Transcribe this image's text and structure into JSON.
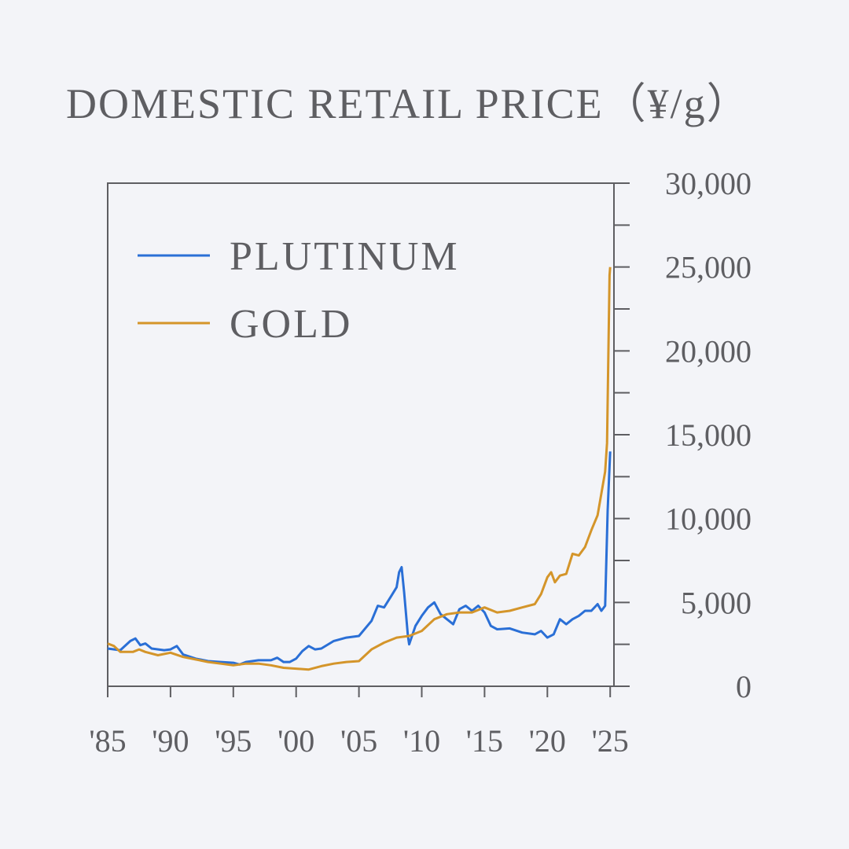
{
  "chart_data": {
    "type": "line",
    "title": "DOMESTIC RETAIL PRICE（¥/g）",
    "xlabel": "",
    "ylabel": "",
    "xlim": [
      1985,
      2025.3
    ],
    "ylim": [
      0,
      30000
    ],
    "x_ticks": [
      1985,
      1990,
      1995,
      2000,
      2005,
      2010,
      2015,
      2020,
      2025
    ],
    "x_tick_labels": [
      "'85",
      "'90",
      "'95",
      "'00",
      "'05",
      "'10",
      "'15",
      "'20",
      "'25"
    ],
    "y_ticks": [
      0,
      5000,
      10000,
      15000,
      20000,
      25000,
      30000
    ],
    "y_tick_labels": [
      "0",
      "5,000",
      "10,000",
      "15,000",
      "20,000",
      "25,000",
      "30,000"
    ],
    "y_axis_side": "right",
    "grid": false,
    "legend_position": "top-left",
    "series": [
      {
        "name": "PLUTINUM",
        "color": "#2a6fd6",
        "points": [
          [
            1985.0,
            2250
          ],
          [
            1986.0,
            2150
          ],
          [
            1986.8,
            2700
          ],
          [
            1987.2,
            2850
          ],
          [
            1987.6,
            2450
          ],
          [
            1988.0,
            2550
          ],
          [
            1988.5,
            2250
          ],
          [
            1989.5,
            2150
          ],
          [
            1990.0,
            2200
          ],
          [
            1990.5,
            2400
          ],
          [
            1991.0,
            1900
          ],
          [
            1992.0,
            1650
          ],
          [
            1993.0,
            1500
          ],
          [
            1994.0,
            1450
          ],
          [
            1995.0,
            1400
          ],
          [
            1995.5,
            1300
          ],
          [
            1996.0,
            1450
          ],
          [
            1997.0,
            1550
          ],
          [
            1998.0,
            1550
          ],
          [
            1998.5,
            1700
          ],
          [
            1999.0,
            1450
          ],
          [
            1999.5,
            1450
          ],
          [
            2000.0,
            1650
          ],
          [
            2000.5,
            2100
          ],
          [
            2001.0,
            2400
          ],
          [
            2001.5,
            2200
          ],
          [
            2002.0,
            2250
          ],
          [
            2003.0,
            2700
          ],
          [
            2004.0,
            2900
          ],
          [
            2005.0,
            3000
          ],
          [
            2006.0,
            3900
          ],
          [
            2006.5,
            4800
          ],
          [
            2007.0,
            4700
          ],
          [
            2007.5,
            5300
          ],
          [
            2008.0,
            5900
          ],
          [
            2008.2,
            6800
          ],
          [
            2008.4,
            7100
          ],
          [
            2008.6,
            5600
          ],
          [
            2008.9,
            3000
          ],
          [
            2009.0,
            2500
          ],
          [
            2009.5,
            3600
          ],
          [
            2010.0,
            4200
          ],
          [
            2010.5,
            4700
          ],
          [
            2011.0,
            5000
          ],
          [
            2011.5,
            4300
          ],
          [
            2012.0,
            4000
          ],
          [
            2012.5,
            3700
          ],
          [
            2013.0,
            4600
          ],
          [
            2013.5,
            4800
          ],
          [
            2014.0,
            4500
          ],
          [
            2014.5,
            4800
          ],
          [
            2015.0,
            4400
          ],
          [
            2015.5,
            3600
          ],
          [
            2016.0,
            3400
          ],
          [
            2017.0,
            3450
          ],
          [
            2018.0,
            3200
          ],
          [
            2019.0,
            3100
          ],
          [
            2019.5,
            3300
          ],
          [
            2020.0,
            2900
          ],
          [
            2020.5,
            3100
          ],
          [
            2021.0,
            4000
          ],
          [
            2021.5,
            3700
          ],
          [
            2022.0,
            4000
          ],
          [
            2022.5,
            4200
          ],
          [
            2023.0,
            4500
          ],
          [
            2023.5,
            4500
          ],
          [
            2024.0,
            4900
          ],
          [
            2024.3,
            4500
          ],
          [
            2024.6,
            4800
          ],
          [
            2024.8,
            10500
          ],
          [
            2025.0,
            14000
          ]
        ]
      },
      {
        "name": "GOLD",
        "color": "#d4952a",
        "points": [
          [
            1985.0,
            2550
          ],
          [
            1985.5,
            2400
          ],
          [
            1986.0,
            2050
          ],
          [
            1987.0,
            2050
          ],
          [
            1987.5,
            2200
          ],
          [
            1988.0,
            2050
          ],
          [
            1989.0,
            1850
          ],
          [
            1990.0,
            2000
          ],
          [
            1991.0,
            1750
          ],
          [
            1992.0,
            1600
          ],
          [
            1993.0,
            1450
          ],
          [
            1994.0,
            1350
          ],
          [
            1995.0,
            1250
          ],
          [
            1996.0,
            1350
          ],
          [
            1997.0,
            1350
          ],
          [
            1998.0,
            1250
          ],
          [
            1999.0,
            1100
          ],
          [
            2000.0,
            1050
          ],
          [
            2001.0,
            1000
          ],
          [
            2002.0,
            1200
          ],
          [
            2003.0,
            1350
          ],
          [
            2004.0,
            1450
          ],
          [
            2005.0,
            1500
          ],
          [
            2006.0,
            2200
          ],
          [
            2007.0,
            2600
          ],
          [
            2008.0,
            2900
          ],
          [
            2009.0,
            3000
          ],
          [
            2010.0,
            3300
          ],
          [
            2011.0,
            4000
          ],
          [
            2012.0,
            4300
          ],
          [
            2013.0,
            4400
          ],
          [
            2014.0,
            4400
          ],
          [
            2015.0,
            4700
          ],
          [
            2016.0,
            4400
          ],
          [
            2017.0,
            4500
          ],
          [
            2018.0,
            4700
          ],
          [
            2019.0,
            4900
          ],
          [
            2019.5,
            5500
          ],
          [
            2020.0,
            6500
          ],
          [
            2020.3,
            6800
          ],
          [
            2020.6,
            6200
          ],
          [
            2021.0,
            6600
          ],
          [
            2021.5,
            6700
          ],
          [
            2022.0,
            7900
          ],
          [
            2022.5,
            7800
          ],
          [
            2023.0,
            8300
          ],
          [
            2023.5,
            9300
          ],
          [
            2024.0,
            10200
          ],
          [
            2024.3,
            11500
          ],
          [
            2024.6,
            12800
          ],
          [
            2024.75,
            14500
          ],
          [
            2024.85,
            19500
          ],
          [
            2024.95,
            24500
          ],
          [
            2025.0,
            25000
          ]
        ]
      }
    ]
  }
}
